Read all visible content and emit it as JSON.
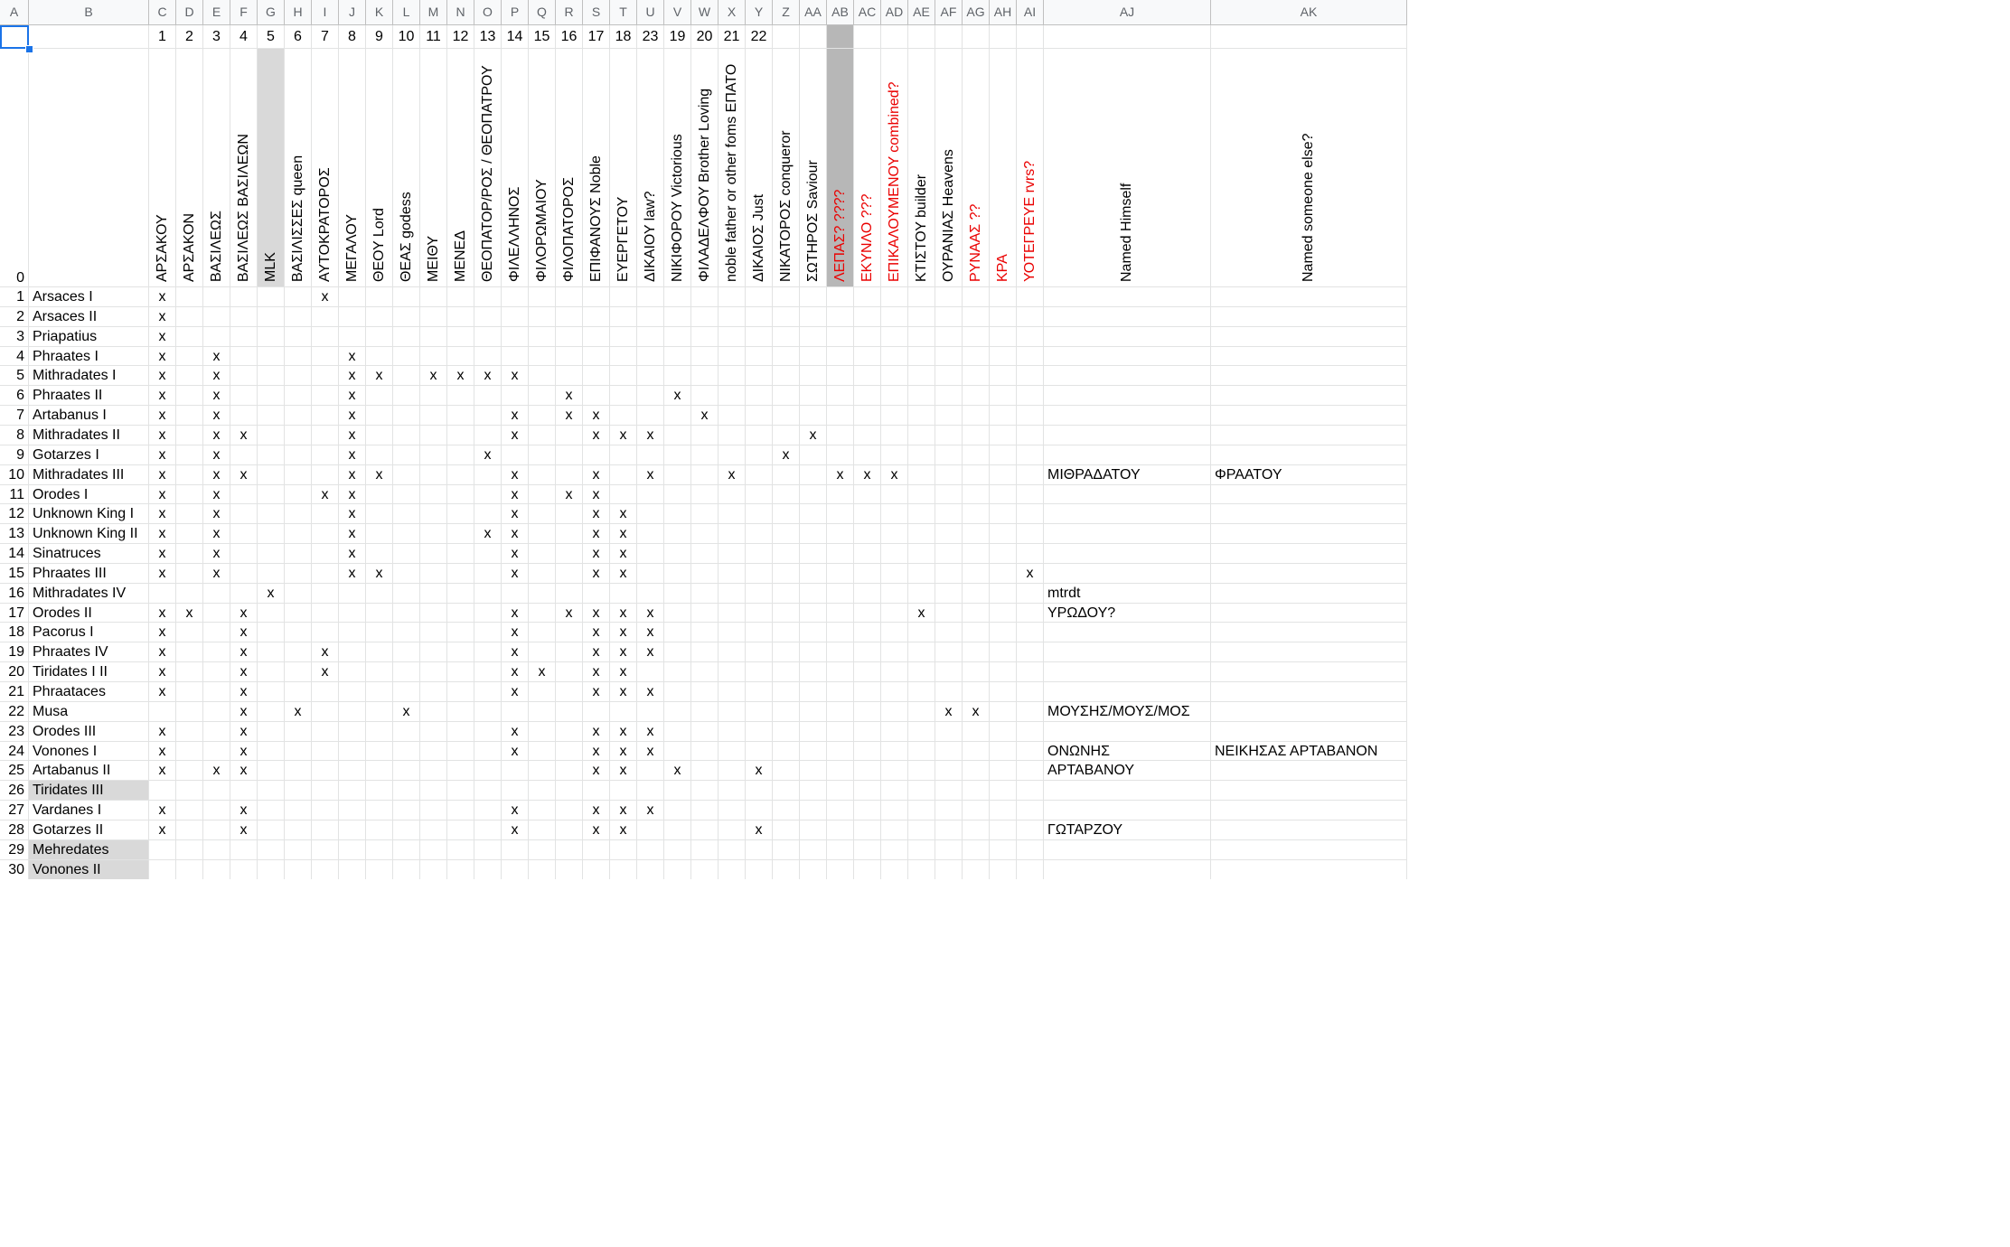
{
  "columns": [
    "A",
    "B",
    "C",
    "D",
    "E",
    "F",
    "G",
    "H",
    "I",
    "J",
    "K",
    "L",
    "M",
    "N",
    "O",
    "P",
    "Q",
    "R",
    "S",
    "T",
    "U",
    "V",
    "W",
    "X",
    "Y",
    "Z",
    "AA",
    "AB",
    "AC",
    "AD",
    "AE",
    "AF",
    "AG",
    "AH",
    "AI",
    "AJ",
    "AK"
  ],
  "header_row_1": [
    "",
    "",
    "1",
    "2",
    "3",
    "4",
    "5",
    "6",
    "7",
    "8",
    "9",
    "10",
    "11",
    "12",
    "13",
    "14",
    "15",
    "16",
    "17",
    "18",
    "23",
    "19",
    "20",
    "21",
    "22",
    "",
    "",
    "",
    "",
    "",
    "",
    "",
    "",
    "",
    "",
    "",
    ""
  ],
  "header_row_0_label": "0",
  "greek_titles": [
    {
      "text": "ΑΡΣΑΚΟΥ",
      "red": false
    },
    {
      "text": "ΑΡΣΑΚΟΝ",
      "red": false
    },
    {
      "text": "ΒΑΣΙΛΕΩΣ",
      "red": false
    },
    {
      "text": "ΒΑΣΙΛΕΩΣ ΒΑΣΙΛΕΩΝ",
      "red": false
    },
    {
      "text": "MLK",
      "red": false
    },
    {
      "text": "ΒΑΣΙΛΙΣΣΕΣ queen",
      "red": false
    },
    {
      "text": "ΑΥΤΟΚΡΑΤΟΡΟΣ",
      "red": false
    },
    {
      "text": "ΜΕΓΑΛΟΥ",
      "red": false
    },
    {
      "text": "ΘΕΟΥ Lord",
      "red": false
    },
    {
      "text": "ΘΕΑΣ godess",
      "red": false
    },
    {
      "text": "ΜΕΙΘΥ",
      "red": false
    },
    {
      "text": "ΜΕΝΕΔ",
      "red": false
    },
    {
      "text": "ΘΕΟΠΑΤΟΡ/ΡΟΣ / ΘΕΟΠΑΤΡΟΥ",
      "red": false
    },
    {
      "text": "ΦΙΛΕΛΛΗΝΟΣ",
      "red": false
    },
    {
      "text": "ΦΙΛΟΡΩΜΑΙΟΥ",
      "red": false
    },
    {
      "text": "ΦΙΛΟΠΑΤΟΡΟΣ",
      "red": false
    },
    {
      "text": "ΕΠΙΦΑΝΟΥΣ Noble",
      "red": false
    },
    {
      "text": "ΕΥΕΡΓΕΤΟΥ",
      "red": false
    },
    {
      "text": "ΔΙΚΑΙΟΥ law?",
      "red": false
    },
    {
      "text": "ΝΙΚΙΦΟΡΟΥ Victorious",
      "red": false
    },
    {
      "text": "ΦΙΛΑΔΕΛΦΟΥ Brother Loving",
      "red": false
    },
    {
      "text": "noble father or other foms ΕΠΑΤΟ",
      "red": false
    },
    {
      "text": "ΔΙΚΑΙΟΣ Just",
      "red": false
    },
    {
      "text": "ΝΙΚΑΤΟΡΟΣ conqueror",
      "red": false
    },
    {
      "text": "ΣΩΤΗΡΟΣ Saviour",
      "red": false
    },
    {
      "text": "ΛΕΠΑΣ? ????",
      "red": true
    },
    {
      "text": "ΕΚΥΝΛΟ ???",
      "red": true
    },
    {
      "text": "ΕΠΙΚΑΛΟΥΜΕΝΟΥ combined?",
      "red": true
    },
    {
      "text": "ΚΤΙΣΤΟΥ builder",
      "red": false
    },
    {
      "text": "ΟΥΡΑΝΙΑΣ Heavens",
      "red": false
    },
    {
      "text": "ΡΥΝΑΑΣ ??",
      "red": true
    },
    {
      "text": "ΚΡΑ",
      "red": true
    },
    {
      "text": "ΥΟΤΕΓΡΕΥΕ rvrs?",
      "red": true
    },
    {
      "text": "Named Himself",
      "red": false
    },
    {
      "text": "Named someone else?",
      "red": false
    }
  ],
  "rows": [
    {
      "n": "1",
      "name": "Arsaces I",
      "marks": [
        0,
        6
      ],
      "aj": "",
      "ak": "",
      "grey": false
    },
    {
      "n": "2",
      "name": "Arsaces II",
      "marks": [
        0
      ],
      "aj": "",
      "ak": "",
      "grey": false
    },
    {
      "n": "3",
      "name": "Priapatius",
      "marks": [
        0
      ],
      "aj": "",
      "ak": "",
      "grey": false
    },
    {
      "n": "4",
      "name": "Phraates I",
      "marks": [
        0,
        2,
        7
      ],
      "aj": "",
      "ak": "",
      "grey": false
    },
    {
      "n": "5",
      "name": "Mithradates I",
      "marks": [
        0,
        2,
        7,
        8,
        10,
        11,
        12,
        13
      ],
      "aj": "",
      "ak": "",
      "grey": false
    },
    {
      "n": "6",
      "name": "Phraates II",
      "marks": [
        0,
        2,
        7,
        15,
        19
      ],
      "aj": "",
      "ak": "",
      "grey": false
    },
    {
      "n": "7",
      "name": "Artabanus I",
      "marks": [
        0,
        2,
        7,
        13,
        15,
        16,
        20
      ],
      "aj": "",
      "ak": "",
      "grey": false
    },
    {
      "n": "8",
      "name": "Mithradates II",
      "marks": [
        0,
        2,
        3,
        7,
        13,
        16,
        17,
        18,
        24
      ],
      "aj": "",
      "ak": "",
      "grey": false
    },
    {
      "n": "9",
      "name": "Gotarzes I",
      "marks": [
        0,
        2,
        7,
        12,
        23
      ],
      "aj": "",
      "ak": "",
      "grey": false
    },
    {
      "n": "10",
      "name": "Mithradates III",
      "marks": [
        0,
        2,
        3,
        7,
        8,
        13,
        16,
        18,
        21,
        25,
        26,
        27
      ],
      "aj": "ΜΙΘΡΑΔΑΤΟΥ",
      "ak": "ΦΡΑΑΤΟΥ",
      "grey": false
    },
    {
      "n": "11",
      "name": "Orodes I",
      "marks": [
        0,
        2,
        6,
        7,
        13,
        15,
        16
      ],
      "aj": "",
      "ak": "",
      "grey": false
    },
    {
      "n": "12",
      "name": "Unknown King I",
      "marks": [
        0,
        2,
        7,
        13,
        16,
        17
      ],
      "aj": "",
      "ak": "",
      "grey": false
    },
    {
      "n": "13",
      "name": "Unknown King II",
      "marks": [
        0,
        2,
        7,
        12,
        13,
        16,
        17
      ],
      "aj": "",
      "ak": "",
      "grey": false
    },
    {
      "n": "14",
      "name": "Sinatruces",
      "marks": [
        0,
        2,
        7,
        13,
        16,
        17
      ],
      "aj": "",
      "ak": "",
      "grey": false
    },
    {
      "n": "15",
      "name": "Phraates III",
      "marks": [
        0,
        2,
        7,
        8,
        13,
        16,
        17,
        32
      ],
      "aj": "",
      "ak": "",
      "grey": false
    },
    {
      "n": "16",
      "name": "Mithradates IV",
      "marks": [
        4
      ],
      "aj": "mtrdt",
      "ak": "",
      "grey": false
    },
    {
      "n": "17",
      "name": "Orodes II",
      "marks": [
        0,
        1,
        3,
        13,
        15,
        16,
        17,
        18,
        28
      ],
      "aj": "ΥΡΩΔΟΥ?",
      "ak": "",
      "grey": false
    },
    {
      "n": "18",
      "name": "Pacorus I",
      "marks": [
        0,
        3,
        13,
        16,
        17,
        18
      ],
      "aj": "",
      "ak": "",
      "grey": false
    },
    {
      "n": "19",
      "name": "Phraates IV",
      "marks": [
        0,
        3,
        6,
        13,
        16,
        17,
        18
      ],
      "aj": "",
      "ak": "",
      "grey": false
    },
    {
      "n": "20",
      "name": "Tiridates I II",
      "marks": [
        0,
        3,
        6,
        13,
        14,
        16,
        17
      ],
      "aj": "",
      "ak": "",
      "grey": false
    },
    {
      "n": "21",
      "name": "Phraataces",
      "marks": [
        0,
        3,
        13,
        16,
        17,
        18
      ],
      "aj": "",
      "ak": "",
      "grey": false
    },
    {
      "n": "22",
      "name": "Musa",
      "marks": [
        3,
        5,
        9,
        29,
        30
      ],
      "aj": "ΜΟΥΣΗΣ/ΜΟΥΣ/ΜΟΣ",
      "ak": "",
      "grey": false
    },
    {
      "n": "23",
      "name": "Orodes III",
      "marks": [
        0,
        3,
        13,
        16,
        17,
        18
      ],
      "aj": "",
      "ak": "",
      "grey": false
    },
    {
      "n": "24",
      "name": "Vonones I",
      "marks": [
        0,
        3,
        13,
        16,
        17,
        18
      ],
      "aj": "ΟΝΩΝΗΣ",
      "ak": "ΝΕΙΚΗΣΑΣ ΑΡΤΑΒΑΝΟΝ",
      "grey": false
    },
    {
      "n": "25",
      "name": "Artabanus II",
      "marks": [
        0,
        2,
        3,
        16,
        17,
        19,
        22
      ],
      "aj": "ΑΡΤΑΒΑΝΟΥ",
      "ak": "",
      "grey": false
    },
    {
      "n": "26",
      "name": "Tiridates III",
      "marks": [],
      "aj": "",
      "ak": "",
      "grey": true
    },
    {
      "n": "27",
      "name": "Vardanes I",
      "marks": [
        0,
        3,
        13,
        16,
        17,
        18
      ],
      "aj": "",
      "ak": "",
      "grey": false
    },
    {
      "n": "28",
      "name": "Gotarzes II",
      "marks": [
        0,
        3,
        13,
        16,
        17,
        22
      ],
      "aj": "ΓΩΤΑΡΖΟΥ",
      "ak": "",
      "grey": false
    },
    {
      "n": "29",
      "name": "Mehredates",
      "marks": [],
      "aj": "",
      "ak": "",
      "grey": true
    },
    {
      "n": "30",
      "name": "Vonones II",
      "marks": [],
      "aj": "",
      "ak": "",
      "grey": true
    }
  ],
  "mark_symbol": "x",
  "greyed_columns": [
    "G",
    "AB"
  ],
  "selected_cell": "A1"
}
